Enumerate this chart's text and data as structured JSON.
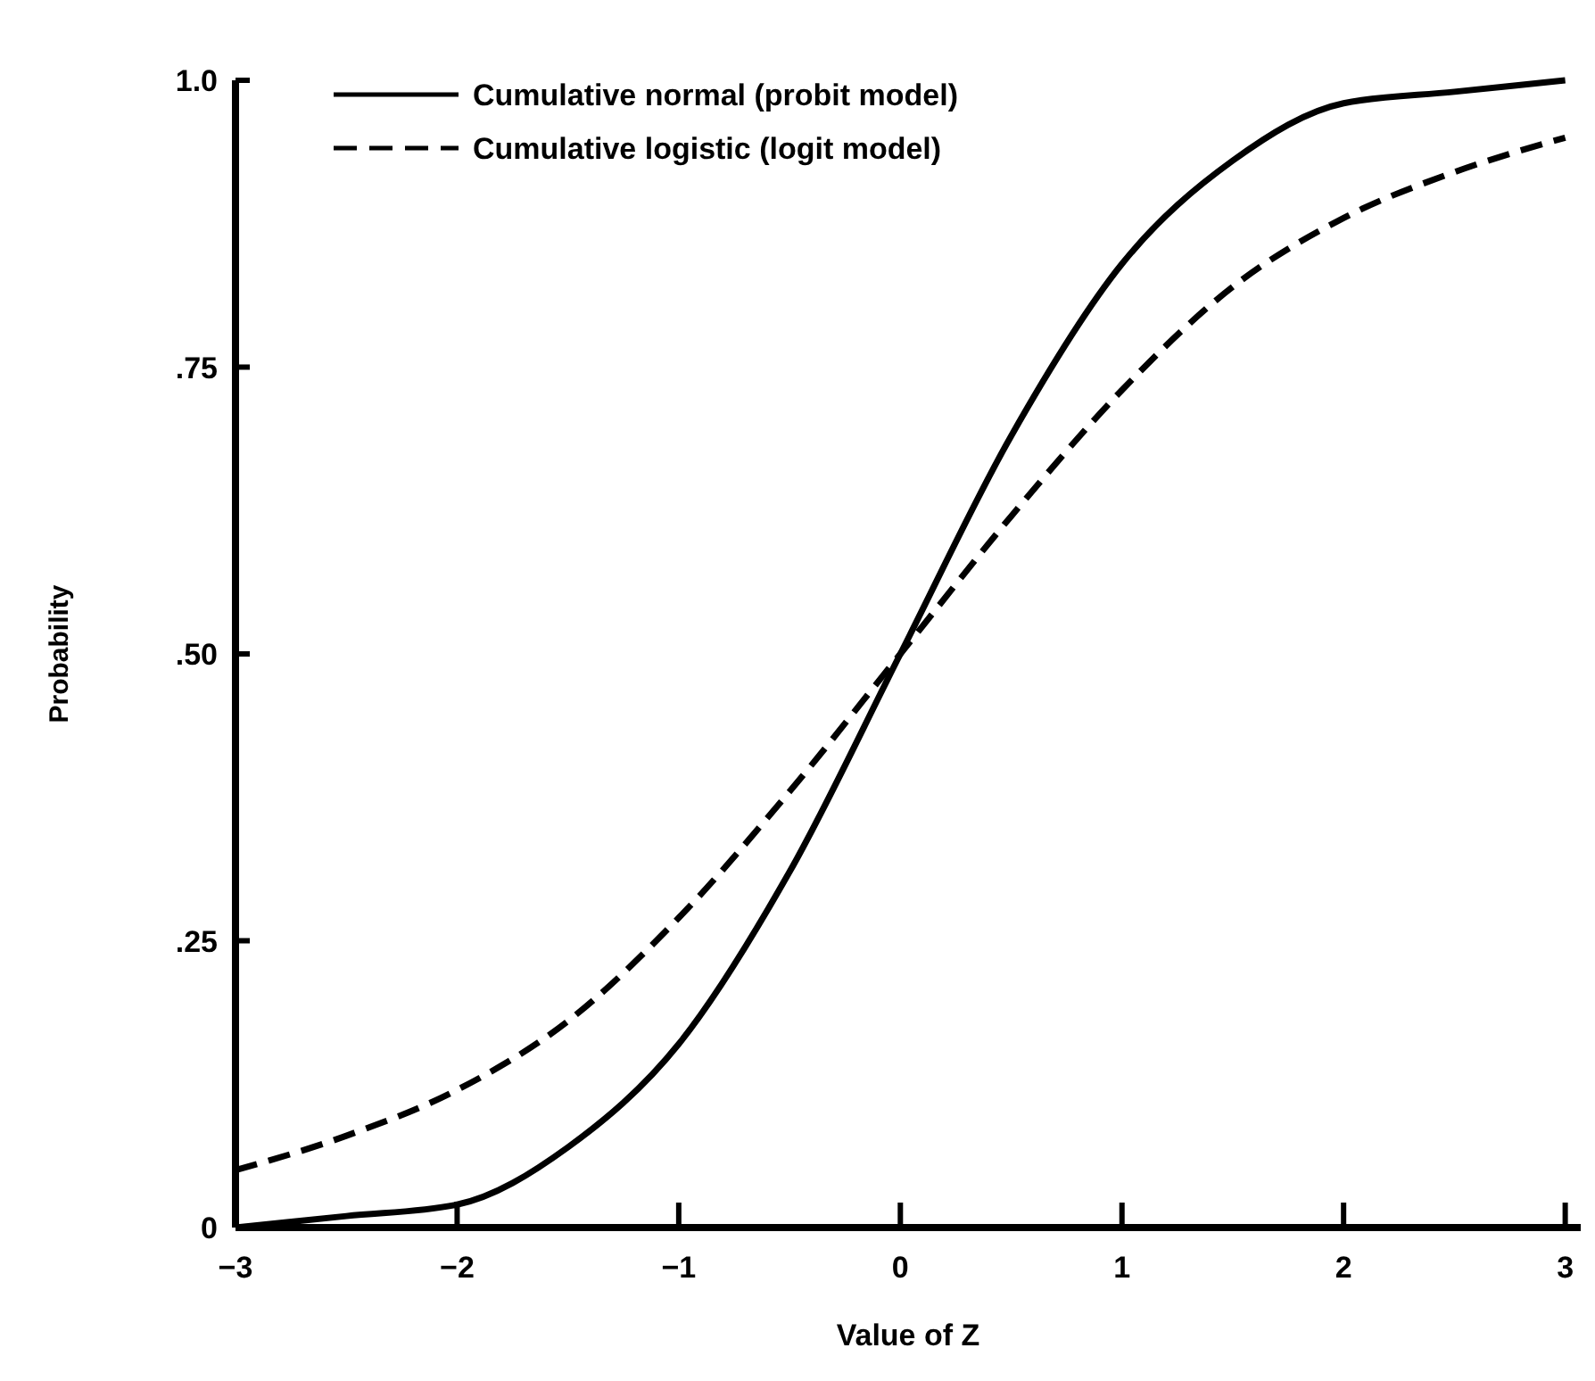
{
  "chart_data": {
    "type": "line",
    "xlabel": "Value of Z",
    "ylabel": "Probability",
    "x": [
      -3,
      -2.5,
      -2,
      -1.5,
      -1,
      -0.5,
      0,
      0.5,
      1,
      1.5,
      2,
      2.5,
      3
    ],
    "series": [
      {
        "name": "Cumulative normal (probit model)",
        "color": "#000000",
        "line_style": "solid",
        "values": [
          0.0,
          0.01,
          0.02,
          0.07,
          0.16,
          0.31,
          0.5,
          0.69,
          0.84,
          0.93,
          0.98,
          0.99,
          1.0
        ]
      },
      {
        "name": "Cumulative logistic (logit model)",
        "color": "#000000",
        "line_style": "dashed",
        "values": [
          0.05,
          0.08,
          0.12,
          0.18,
          0.27,
          0.38,
          0.5,
          0.62,
          0.73,
          0.82,
          0.88,
          0.92,
          0.95
        ]
      }
    ],
    "xlim": [
      -3,
      3.07
    ],
    "ylim": [
      0,
      1
    ],
    "xticks": [
      {
        "value": -3,
        "label": "−3"
      },
      {
        "value": -2,
        "label": "−2"
      },
      {
        "value": -1,
        "label": "−1"
      },
      0,
      1,
      2,
      3
    ],
    "yticks": [
      0,
      {
        "value": 0.25,
        "label": ".25"
      },
      {
        "value": 0.5,
        "label": ".50"
      },
      {
        "value": 0.75,
        "label": ".75"
      },
      {
        "value": 1,
        "label": "1.0"
      }
    ],
    "grid": false,
    "legend": "top left",
    "marker": "none"
  }
}
